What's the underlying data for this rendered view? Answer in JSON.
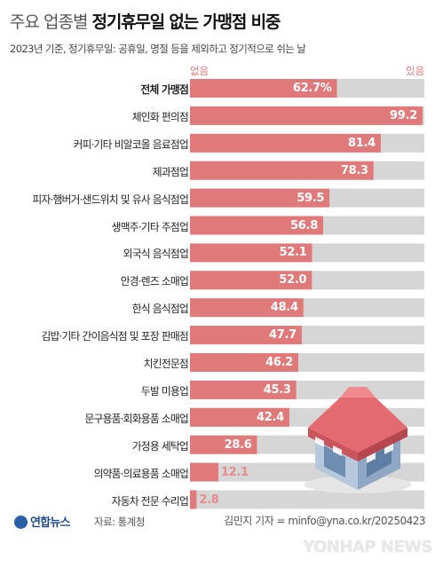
{
  "title_prefix": "주요 업종별",
  "title_main": "정기휴무일 없는 가맹점 비중",
  "subtitle": "2023년 기준, 정기휴무일: 공휴일, 명절 등을 제외하고 정기적으로 쉬는 날",
  "legend": {
    "none": "없음",
    "has": "있음"
  },
  "colors": {
    "bar": "#e07a7a",
    "remainder": "#d6d6d6"
  },
  "chart_data": {
    "type": "bar",
    "orientation": "horizontal",
    "stacked_to": 100,
    "unit": "%",
    "categories": [
      "전체 가맹점",
      "체인화 편의점",
      "커피·기타 비알코올 음료점업",
      "제과점업",
      "피자·햄버거·샌드위치 및 유사 음식점업",
      "생맥주·기타 주점업",
      "외국식 음식점업",
      "안경·렌즈 소매업",
      "한식 음식점업",
      "김밥·기타 간이음식점 및 포장 판매점",
      "치킨전문점",
      "두발 미용업",
      "문구용품·회화용품 소매업",
      "가정용 세탁업",
      "의약품·의료용품 소매업",
      "자동차 전문 수리업"
    ],
    "series": [
      {
        "name": "없음",
        "values": [
          62.7,
          99.2,
          81.4,
          78.3,
          59.5,
          56.8,
          52.1,
          52.0,
          48.4,
          47.7,
          46.2,
          45.3,
          42.4,
          28.6,
          12.1,
          2.8
        ]
      }
    ],
    "value_labels": [
      "62.7%",
      "99.2",
      "81.4",
      "78.3",
      "59.5",
      "56.8",
      "52.1",
      "52.0",
      "48.4",
      "47.7",
      "46.2",
      "45.3",
      "42.4",
      "28.6",
      "12.1",
      "2.8"
    ],
    "xlim": [
      0,
      100
    ]
  },
  "footer": {
    "logo": "연합뉴스",
    "source": "자료: 통계청",
    "credit": "김민지 기자 = minfo@yna.co.kr/20250423",
    "watermark": "YONHAP NEWS"
  }
}
